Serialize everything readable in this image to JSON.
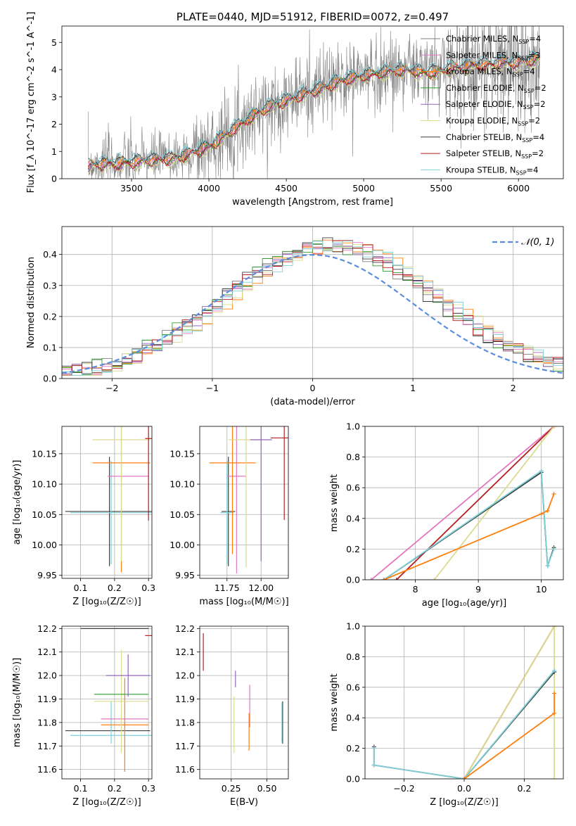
{
  "colors": {
    "Chabrier MILES": "#7f7f7f",
    "Salpeter MILES": "#e377c2",
    "Kroupa MILES": "#ff7f0e",
    "Chabrier ELODIE": "#2ca02c",
    "Salpeter ELODIE": "#9467bd",
    "Kroupa ELODIE": "#dbdb8d",
    "Chabrier STELIB": "#3f3f3f",
    "Salpeter STELIB": "#b41f1f",
    "Kroupa STELIB": "#7fd0d8"
  },
  "chart_data": [
    {
      "id": "spectrum",
      "type": "line",
      "title": "PLATE=0440, MJD=51912, FIBERID=0072, z=0.497",
      "xlabel": "wavelength [Angstrom, rest frame]",
      "ylabel": "Flux [f_λ 10^-17 erg cm^-2 s^-1 A^-1]",
      "xlim": [
        3050,
        6290
      ],
      "ylim": [
        0,
        5.6
      ],
      "xticks": [
        "3500",
        "4000",
        "4500",
        "5000",
        "5500",
        "6000"
      ],
      "yticks": [
        "0",
        "1",
        "2",
        "3",
        "4",
        "5"
      ],
      "legend_position": "top-right",
      "legend": [
        {
          "model": "Chabrier MILES",
          "nssp": "4"
        },
        {
          "model": "Salpeter MILES",
          "nssp": "3"
        },
        {
          "model": "Kroupa MILES",
          "nssp": "4"
        },
        {
          "model": "Chabrier ELODIE",
          "nssp": "2"
        },
        {
          "model": "Salpeter ELODIE",
          "nssp": "2"
        },
        {
          "model": "Kroupa ELODIE",
          "nssp": "2"
        },
        {
          "model": "Chabrier STELIB",
          "nssp": "4"
        },
        {
          "model": "Salpeter STELIB",
          "nssp": "2"
        },
        {
          "model": "Kroupa STELIB",
          "nssp": "4"
        }
      ],
      "model_anchors": {
        "wavelength": [
          3220,
          3250,
          3400,
          3500,
          3600,
          3700,
          3800,
          3900,
          4000,
          4100,
          4200,
          4300,
          4400,
          4500,
          4600,
          4700,
          4800,
          4900,
          5000,
          5100,
          5200,
          5300,
          5400,
          5500,
          5600,
          5700,
          5800,
          5900,
          6000,
          6100,
          6140
        ],
        "flux": [
          0.5,
          0.55,
          0.6,
          0.62,
          0.7,
          0.75,
          0.8,
          1.0,
          1.2,
          1.6,
          2.0,
          2.4,
          2.7,
          2.9,
          3.1,
          3.3,
          3.5,
          3.7,
          3.8,
          3.9,
          4.0,
          4.0,
          3.9,
          4.0,
          4.1,
          4.2,
          4.2,
          4.3,
          4.3,
          4.4,
          4.4
        ]
      },
      "model_offsets": {
        "Chabrier MILES": 0.05,
        "Salpeter MILES": -0.05,
        "Kroupa MILES": 0.0,
        "Chabrier ELODIE": -0.1,
        "Salpeter ELODIE": -0.15,
        "Kroupa ELODIE": -0.2,
        "Chabrier STELIB": 0.1,
        "Salpeter STELIB": -0.1,
        "Kroupa STELIB": 0.15
      },
      "data_noise": 0.9
    },
    {
      "id": "residuals",
      "type": "step",
      "xlabel": "(data-model)/error",
      "ylabel": "Normed distribution",
      "xlim": [
        -2.5,
        2.5
      ],
      "ylim": [
        0,
        0.49
      ],
      "xticks": [
        "−2",
        "−1",
        "0",
        "1",
        "2"
      ],
      "xtick_values": [
        -2,
        -1,
        0,
        1,
        2
      ],
      "yticks": [
        "0.0",
        "0.1",
        "0.2",
        "0.3",
        "0.4"
      ],
      "ytick_values": [
        0,
        0.1,
        0.2,
        0.3,
        0.4
      ],
      "legend_label": "𝒩(0, 1)",
      "legend_position": "top-right",
      "gaussian": {
        "mean": 0,
        "sigma": 1,
        "color": "#5b8ddf"
      },
      "bins": 50
    },
    {
      "id": "age_vs_Z",
      "type": "errorbar",
      "xlabel": "Z [log₁₀(Z/Z☉)]",
      "ylabel": "age  [log₁₀(age/yr)]",
      "xlim": [
        0.045,
        0.31
      ],
      "ylim": [
        9.945,
        10.195
      ],
      "xticks": [
        "0.1",
        "0.2",
        "0.3"
      ],
      "xtick_values": [
        0.1,
        0.2,
        0.3
      ],
      "yticks": [
        "9.95",
        "10.00",
        "10.05",
        "10.10",
        "10.15"
      ],
      "ytick_values": [
        9.95,
        10.0,
        10.05,
        10.1,
        10.15
      ],
      "points": [
        {
          "model": "Chabrier STELIB",
          "x": 0.185,
          "xerr": 0.13,
          "y": 10.055,
          "yerr": 0.09
        },
        {
          "model": "Kroupa STELIB",
          "x": 0.19,
          "xerr": 0.12,
          "y": 10.053,
          "yerr": 0.085
        },
        {
          "model": "Salpeter MILES",
          "x": 0.24,
          "xerr": 0.06,
          "y": 10.113,
          "yerr": 0.0
        },
        {
          "model": "Kroupa MILES",
          "x": 0.22,
          "xerr": 0.085,
          "y": 10.135,
          "yerr": 0.18
        },
        {
          "model": "Kroupa ELODIE",
          "x": 0.22,
          "xerr": 0.085,
          "y": 10.173,
          "yerr": 0.2
        },
        {
          "model": "Salpeter STELIB",
          "x": 0.3,
          "xerr": 0.01,
          "y": 10.175,
          "yerr": 0.135
        }
      ]
    },
    {
      "id": "age_vs_mass",
      "type": "errorbar",
      "xlabel": "mass [log₁₀(M/M☉)]",
      "ylabel": "",
      "xlim": [
        11.55,
        12.2
      ],
      "ylim": [
        9.945,
        10.195
      ],
      "xticks": [
        "11.75",
        "12.00"
      ],
      "xtick_values": [
        11.75,
        12.0
      ],
      "yticks": [
        "9.95",
        "10.00",
        "10.05",
        "10.10",
        "10.15"
      ],
      "ytick_values": [
        9.95,
        10.0,
        10.05,
        10.1,
        10.15
      ],
      "points": [
        {
          "model": "Chabrier STELIB",
          "x": 11.76,
          "xerr": 0.05,
          "y": 10.055,
          "yerr": 0.09
        },
        {
          "model": "Kroupa STELIB",
          "x": 11.75,
          "xerr": 0.05,
          "y": 10.053,
          "yerr": 0.085
        },
        {
          "model": "Salpeter MILES",
          "x": 11.82,
          "xerr": 0.07,
          "y": 10.113,
          "yerr": 0.16
        },
        {
          "model": "Kroupa MILES",
          "x": 11.79,
          "xerr": 0.17,
          "y": 10.135,
          "yerr": 0.15
        },
        {
          "model": "Kroupa ELODIE",
          "x": 11.89,
          "xerr": 0.13,
          "y": 10.173,
          "yerr": 0.21
        },
        {
          "model": "Salpeter ELODIE",
          "x": 12.0,
          "xerr": 0.08,
          "y": 10.173,
          "yerr": 0.2
        },
        {
          "model": "Salpeter STELIB",
          "x": 12.17,
          "xerr": 0.1,
          "y": 10.176,
          "yerr": 0.135
        }
      ]
    },
    {
      "id": "weight_vs_age",
      "type": "line",
      "xlabel": "age  [log₁₀(age/yr)]",
      "ylabel": "mass weight",
      "xlim": [
        7.2,
        10.35
      ],
      "ylim": [
        0,
        1.0
      ],
      "xticks": [
        "8",
        "9",
        "10"
      ],
      "xtick_values": [
        8,
        9,
        10
      ],
      "yticks": [
        "0.0",
        "0.2",
        "0.4",
        "0.6",
        "0.8",
        "1.0"
      ],
      "ytick_values": [
        0,
        0.2,
        0.4,
        0.6,
        0.8,
        1.0
      ],
      "series": [
        {
          "model": "Salpeter MILES",
          "x": [
            7.3,
            10.2
          ],
          "y": [
            0.0,
            1.0
          ]
        },
        {
          "model": "Salpeter STELIB",
          "x": [
            7.7,
            10.2
          ],
          "y": [
            0.0,
            1.0
          ]
        },
        {
          "model": "Kroupa ELODIE",
          "x": [
            8.3,
            10.2
          ],
          "y": [
            0.0,
            1.0
          ]
        },
        {
          "model": "Chabrier STELIB",
          "x": [
            7.5,
            10.0,
            10.1,
            10.2
          ],
          "y": [
            0.0,
            0.7,
            0.09,
            0.21
          ]
        },
        {
          "model": "Kroupa STELIB",
          "x": [
            7.5,
            10.0,
            10.1,
            10.2
          ],
          "y": [
            0.0,
            0.71,
            0.09,
            0.2
          ]
        },
        {
          "model": "Kroupa MILES",
          "x": [
            7.5,
            10.0,
            10.1,
            10.2
          ],
          "y": [
            0.0,
            0.43,
            0.45,
            0.56
          ]
        }
      ]
    },
    {
      "id": "mass_vs_Z",
      "type": "errorbar",
      "xlabel": "Z [log₁₀(Z/Z☉)]",
      "ylabel": "mass [log₁₀(M/M☉)]",
      "xlim": [
        0.045,
        0.31
      ],
      "ylim": [
        11.56,
        12.21
      ],
      "xticks": [
        "0.1",
        "0.2",
        "0.3"
      ],
      "xtick_values": [
        0.1,
        0.2,
        0.3
      ],
      "yticks": [
        "11.6",
        "11.7",
        "11.8",
        "11.9",
        "12.0",
        "12.1",
        "12.2"
      ],
      "ytick_values": [
        11.6,
        11.7,
        11.8,
        11.9,
        12.0,
        12.1,
        12.2
      ],
      "points": [
        {
          "model": "Chabrier STELIB",
          "x": 0.18,
          "xerr": 0.125,
          "y": 11.765,
          "yerr": 0.0
        },
        {
          "model": "Kroupa STELIB",
          "x": 0.19,
          "xerr": 0.12,
          "y": 11.745,
          "yerr": 0.0
        },
        {
          "model": "Kroupa STELIB",
          "x": 0.19,
          "xerr": 0.0,
          "y": 11.8,
          "yerr": 0.09
        },
        {
          "model": "Salpeter MILES",
          "x": 0.23,
          "xerr": 0.07,
          "y": 11.815,
          "yerr": 0.0
        },
        {
          "model": "Kroupa MILES",
          "x": 0.23,
          "xerr": 0.07,
          "y": 11.79,
          "yerr": 0.2
        },
        {
          "model": "Kroupa ELODIE",
          "x": 0.22,
          "xerr": 0.08,
          "y": 11.89,
          "yerr": 0.22
        },
        {
          "model": "Chabrier ELODIE",
          "x": 0.22,
          "xerr": 0.08,
          "y": 11.92,
          "yerr": 0.0
        },
        {
          "model": "Salpeter ELODIE",
          "x": 0.24,
          "xerr": 0.065,
          "y": 12.0,
          "yerr": 0.09
        },
        {
          "model": "Salpeter STELIB",
          "x": 0.3,
          "xerr": 0.01,
          "y": 12.17,
          "yerr": 0.0
        },
        {
          "model": "Chabrier STELIB",
          "x": 0.2,
          "xerr": 0.1,
          "y": 12.2,
          "yerr": 0.0
        }
      ]
    },
    {
      "id": "mass_vs_EBV",
      "type": "errorbar",
      "xlabel": "E(B-V)",
      "ylabel": "",
      "xlim": [
        0.03,
        0.65
      ],
      "ylim": [
        11.56,
        12.21
      ],
      "xticks": [
        "0.25",
        "0.50"
      ],
      "xtick_values": [
        0.25,
        0.5
      ],
      "yticks": [
        "11.6",
        "11.7",
        "11.8",
        "11.9",
        "12.0",
        "12.1",
        "12.2"
      ],
      "ytick_values": [
        11.6,
        11.7,
        11.8,
        11.9,
        12.0,
        12.1,
        12.2
      ],
      "points": [
        {
          "model": "Salpeter STELIB",
          "x": 0.055,
          "xerr": 0.0,
          "y": 12.1,
          "yerr": 0.08
        },
        {
          "model": "Salpeter ELODIE",
          "x": 0.28,
          "xerr": 0.0,
          "y": 11.985,
          "yerr": 0.035
        },
        {
          "model": "Kroupa ELODIE",
          "x": 0.27,
          "xerr": 0.0,
          "y": 11.79,
          "yerr": 0.12
        },
        {
          "model": "Salpeter MILES",
          "x": 0.38,
          "xerr": 0.0,
          "y": 11.87,
          "yerr": 0.09
        },
        {
          "model": "Kroupa MILES",
          "x": 0.375,
          "xerr": 0.0,
          "y": 11.76,
          "yerr": 0.08
        },
        {
          "model": "Chabrier STELIB",
          "x": 0.61,
          "xerr": 0.0,
          "y": 11.8,
          "yerr": 0.09
        },
        {
          "model": "Kroupa STELIB",
          "x": 0.605,
          "xerr": 0.0,
          "y": 11.8,
          "yerr": 0.085
        }
      ]
    },
    {
      "id": "weight_vs_Z",
      "type": "line",
      "xlabel": "Z [log₁₀(Z/Z☉)]",
      "ylabel": "mass weight",
      "xlim": [
        -0.33,
        0.33
      ],
      "ylim": [
        0,
        1.0
      ],
      "xticks": [
        "−0.2",
        "0.0",
        "0.2"
      ],
      "xtick_values": [
        -0.2,
        0.0,
        0.2
      ],
      "yticks": [
        "0.0",
        "0.2",
        "0.4",
        "0.6",
        "0.8",
        "1.0"
      ],
      "ytick_values": [
        0,
        0.2,
        0.4,
        0.6,
        0.8,
        1.0
      ],
      "series": [
        {
          "model": "Salpeter STELIB",
          "x": [
            0.0,
            0.3
          ],
          "y": [
            0.0,
            1.0
          ]
        },
        {
          "model": "Kroupa ELODIE",
          "x": [
            0.0,
            0.3,
            0.3
          ],
          "y": [
            0.0,
            1.0,
            0.0
          ]
        },
        {
          "model": "Chabrier STELIB",
          "x": [
            -0.3,
            -0.3,
            0.0,
            0.3
          ],
          "y": [
            0.21,
            0.09,
            0.0,
            0.7
          ]
        },
        {
          "model": "Kroupa STELIB",
          "x": [
            -0.3,
            -0.3,
            0.0,
            0.3
          ],
          "y": [
            0.2,
            0.09,
            0.0,
            0.71
          ]
        },
        {
          "model": "Kroupa MILES",
          "x": [
            0.0,
            0.3,
            0.3
          ],
          "y": [
            0.0,
            0.43,
            0.56
          ]
        }
      ]
    }
  ]
}
